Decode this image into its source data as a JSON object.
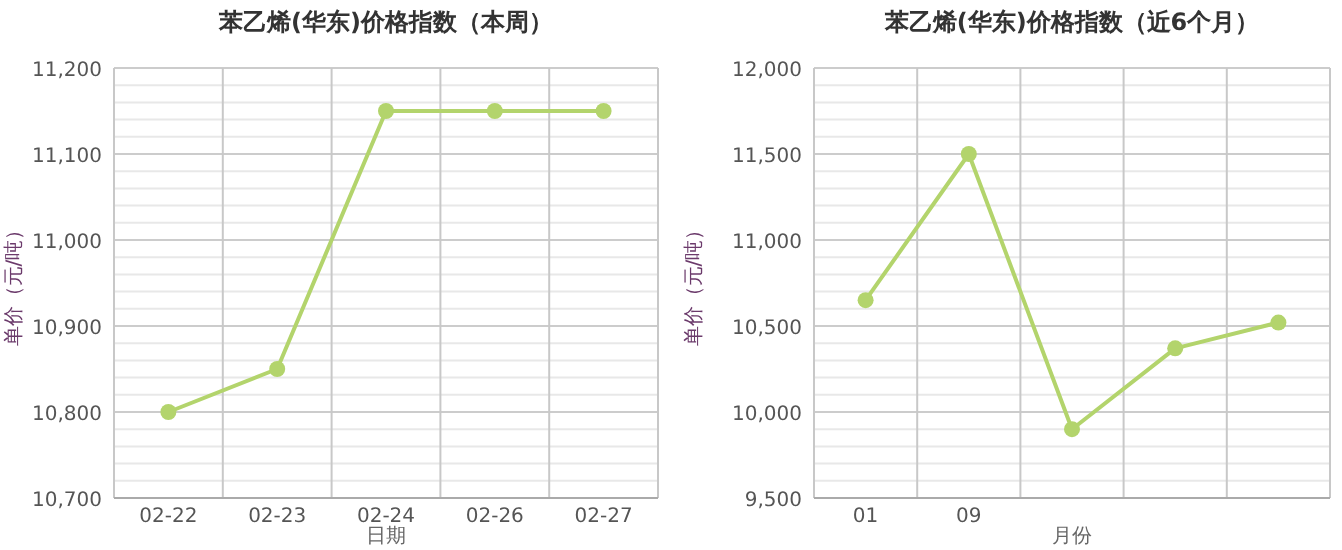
{
  "chart_data": [
    {
      "type": "line",
      "title": "苯乙烯(华东)价格指数（本周）",
      "xlabel": "日期",
      "ylabel": "单价（元/吨）",
      "categories": [
        "02-22",
        "02-23",
        "02-24",
        "02-26",
        "02-27"
      ],
      "series": [
        {
          "color": "#b3d46c",
          "values": [
            10800,
            10850,
            11150,
            11150,
            11150
          ]
        }
      ],
      "ylim": [
        10700,
        11200
      ],
      "yticks": [
        {
          "value": 10700,
          "label": "10,700"
        },
        {
          "value": 10800,
          "label": "10,800"
        },
        {
          "value": 10900,
          "label": "10,900"
        },
        {
          "value": 11000,
          "label": "11,000"
        },
        {
          "value": 11100,
          "label": "11,100"
        },
        {
          "value": 11200,
          "label": "11,200"
        }
      ],
      "grid": true,
      "marker": "circle"
    },
    {
      "type": "line",
      "title": "苯乙烯(华东)价格指数（近6个月）",
      "xlabel": "月份",
      "ylabel": "单价（元/吨）",
      "categories": [
        "01",
        "09",
        null,
        null,
        null
      ],
      "series": [
        {
          "color": "#b3d46c",
          "values": [
            10650,
            11500,
            9900,
            10370,
            10520
          ]
        }
      ],
      "ylim": [
        9500,
        12000
      ],
      "yticks": [
        {
          "value": 9500,
          "label": "9,500"
        },
        {
          "value": 10000,
          "label": "10,000"
        },
        {
          "value": 10500,
          "label": "10,500"
        },
        {
          "value": 11000,
          "label": "11,000"
        },
        {
          "value": 11500,
          "label": "11,500"
        },
        {
          "value": 12000,
          "label": "12,000"
        }
      ],
      "grid": true,
      "marker": "circle"
    }
  ]
}
